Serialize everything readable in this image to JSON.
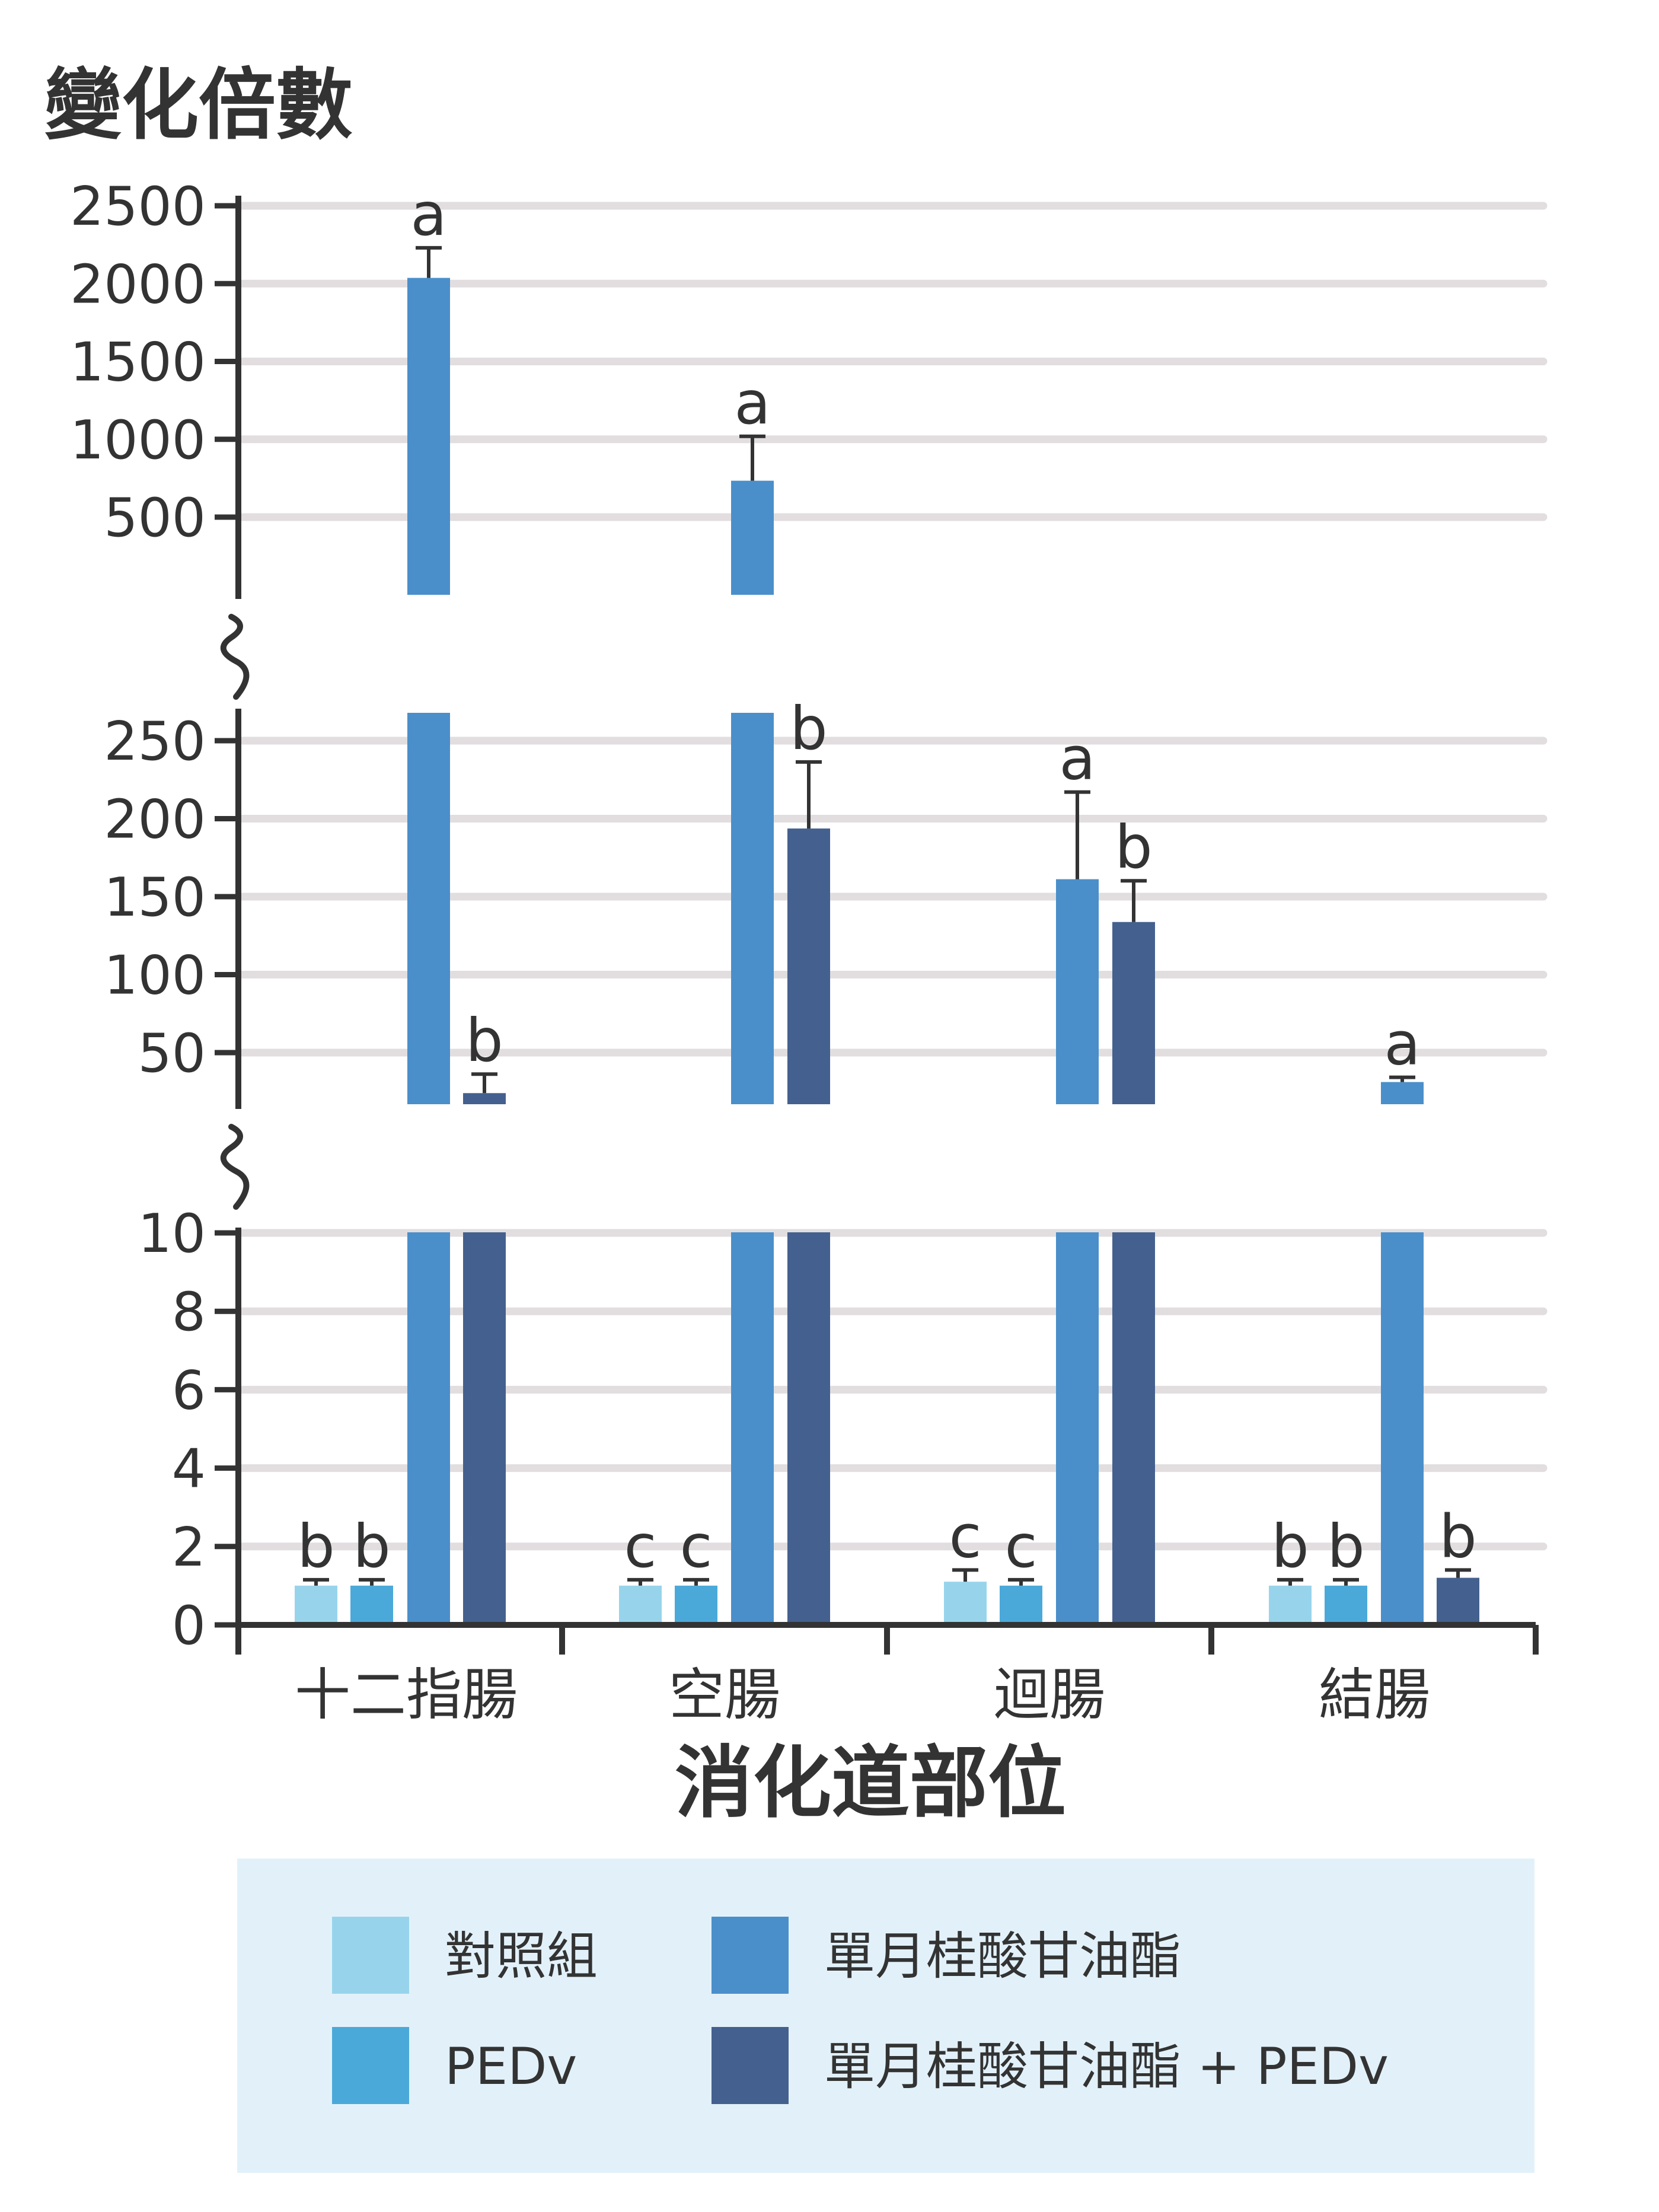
{
  "chart_data": {
    "type": "bar",
    "ylabel": "變化倍數",
    "xlabel": "消化道部位",
    "categories": [
      "十二指腸",
      "空腸",
      "迴腸",
      "結腸"
    ],
    "y_axis_break": true,
    "y_segments": [
      {
        "name": "lower",
        "range": [
          0,
          10
        ],
        "ticks": [
          "0",
          "2",
          "4",
          "6",
          "8",
          "10"
        ]
      },
      {
        "name": "middle",
        "range": [
          18,
          265
        ],
        "ticks": [
          "50",
          "100",
          "150",
          "200",
          "250"
        ]
      },
      {
        "name": "upper",
        "range": [
          0,
          2500
        ],
        "ticks": [
          "500",
          "1000",
          "1500",
          "2000",
          "2500"
        ]
      }
    ],
    "grid": true,
    "legend_position": "bottom",
    "series": [
      {
        "name": "對照組",
        "color": "#97d4ec",
        "values": [
          1,
          1,
          1.1,
          1
        ],
        "errors": [
          0.15,
          0.15,
          0.3,
          0.15
        ],
        "labels": [
          "b",
          "c",
          "c",
          "b"
        ]
      },
      {
        "name": "PEDv",
        "color": "#4ba9d9",
        "values": [
          1,
          1,
          1,
          1
        ],
        "errors": [
          0.15,
          0.15,
          0.15,
          0.15
        ],
        "labels": [
          "b",
          "c",
          "c",
          "b"
        ]
      },
      {
        "name": "單月桂酸甘油酯",
        "color": "#4a8fca",
        "values": [
          2000,
          720,
          160,
          32
        ],
        "errors": [
          190,
          280,
          55,
          3
        ],
        "labels": [
          "a",
          "a",
          "a",
          "a"
        ]
      },
      {
        "name": "單月桂酸甘油酯 + PEDv",
        "color": "#44608e",
        "values": [
          25,
          192,
          133,
          1.2
        ],
        "errors": [
          12,
          42,
          26,
          0.2
        ],
        "labels": [
          "b",
          "b",
          "b",
          "b"
        ]
      }
    ]
  }
}
